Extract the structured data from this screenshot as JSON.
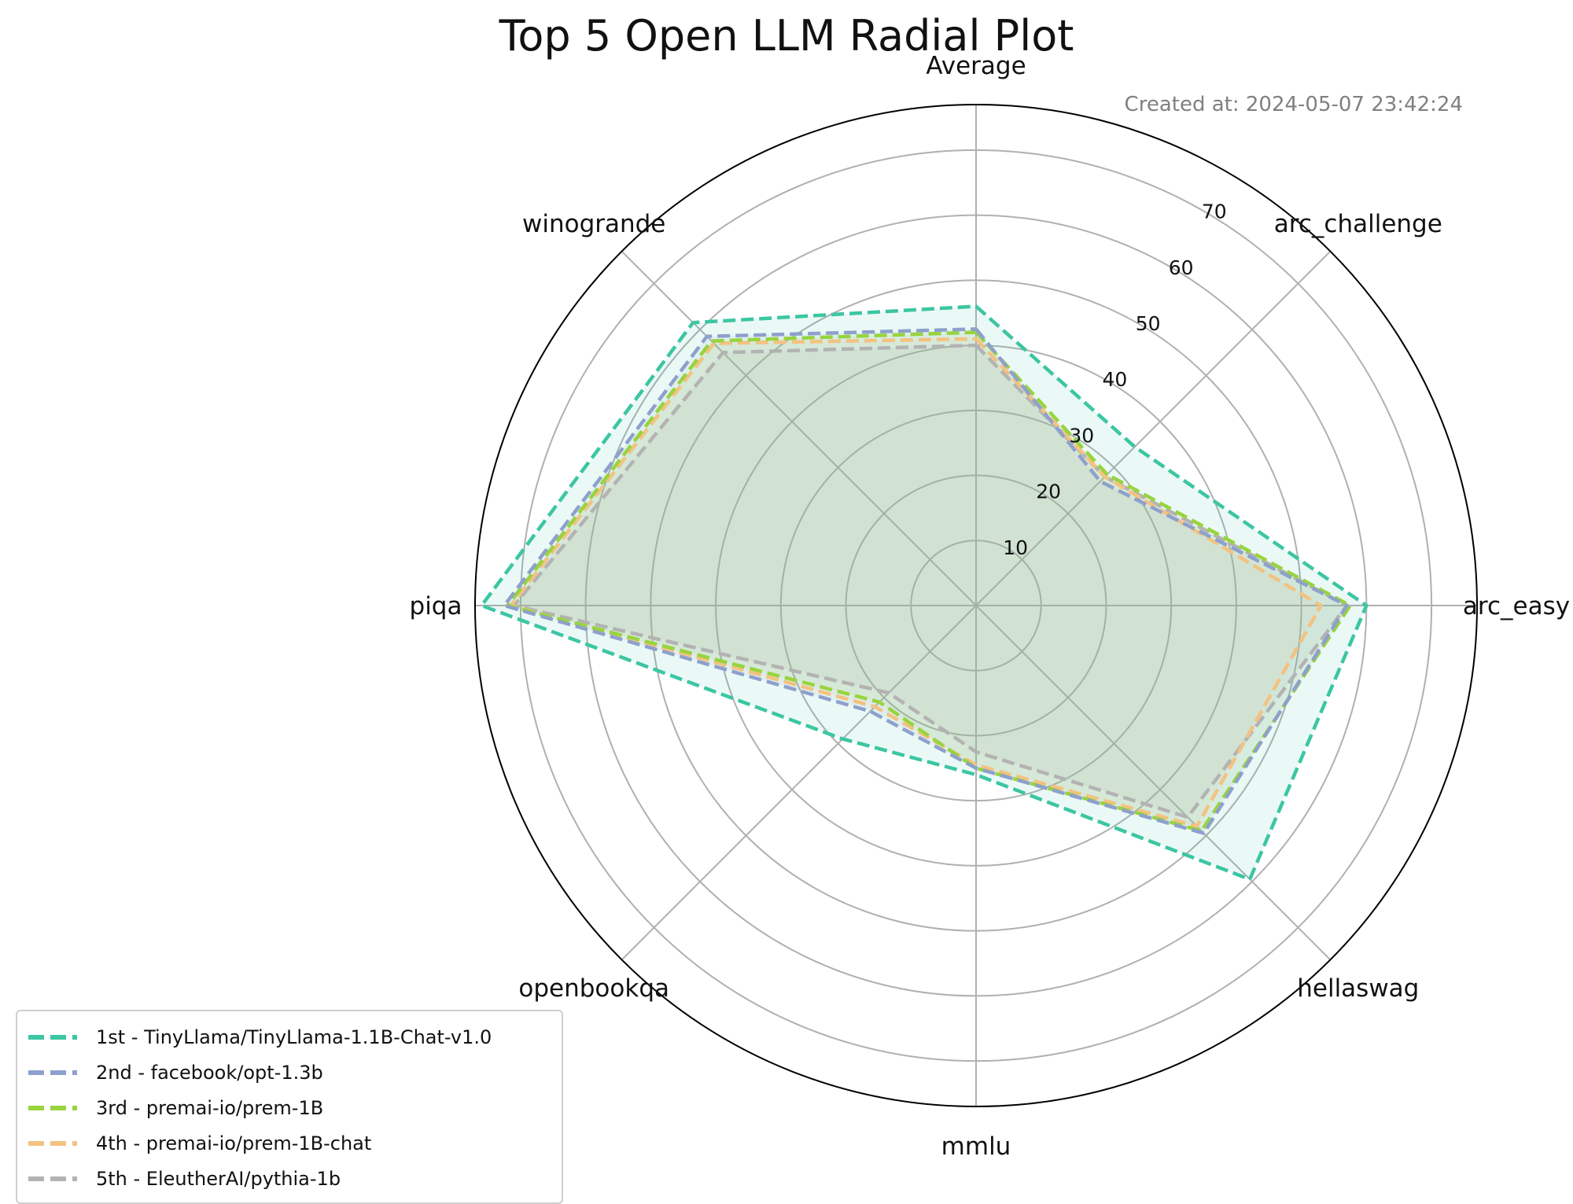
{
  "chart_data": {
    "type": "radar",
    "title": "Top 5 Open LLM Radial Plot",
    "annotation": "Created at: 2024-05-07 23:42:24",
    "categories": [
      "Average",
      "arc_challenge",
      "arc_easy",
      "hellaswag",
      "mmlu",
      "openbookqa",
      "piqa",
      "winogrande"
    ],
    "radial_ticks": [
      10,
      20,
      30,
      40,
      50,
      60,
      70
    ],
    "rlim": [
      0,
      77
    ],
    "grid": true,
    "legend_position": "lower-left",
    "series": [
      {
        "name": "1st - TinyLlama/TinyLlama-1.1B-Chat-v1.0",
        "color": "#3cc6a3",
        "values": [
          46.0,
          34.5,
          60.0,
          59.5,
          26.0,
          29.0,
          76.0,
          61.5
        ]
      },
      {
        "name": "2nd - facebook/opt-1.3b",
        "color": "#8ea0cc",
        "values": [
          42.5,
          27.0,
          57.0,
          49.5,
          25.0,
          23.0,
          72.5,
          58.5
        ]
      },
      {
        "name": "3rd - premai-io/prem-1B",
        "color": "#98d43e",
        "values": [
          42.0,
          28.5,
          57.5,
          49.0,
          25.0,
          21.0,
          72.0,
          57.5
        ]
      },
      {
        "name": "4th - premai-io/prem-1B-chat",
        "color": "#f3c281",
        "values": [
          41.0,
          28.0,
          53.0,
          48.0,
          24.5,
          22.0,
          71.5,
          57.0
        ]
      },
      {
        "name": "5th - EleutherAI/pythia-1b",
        "color": "#b3b3b3",
        "values": [
          40.0,
          28.0,
          57.0,
          46.0,
          22.5,
          19.0,
          71.0,
          55.0
        ]
      }
    ]
  }
}
